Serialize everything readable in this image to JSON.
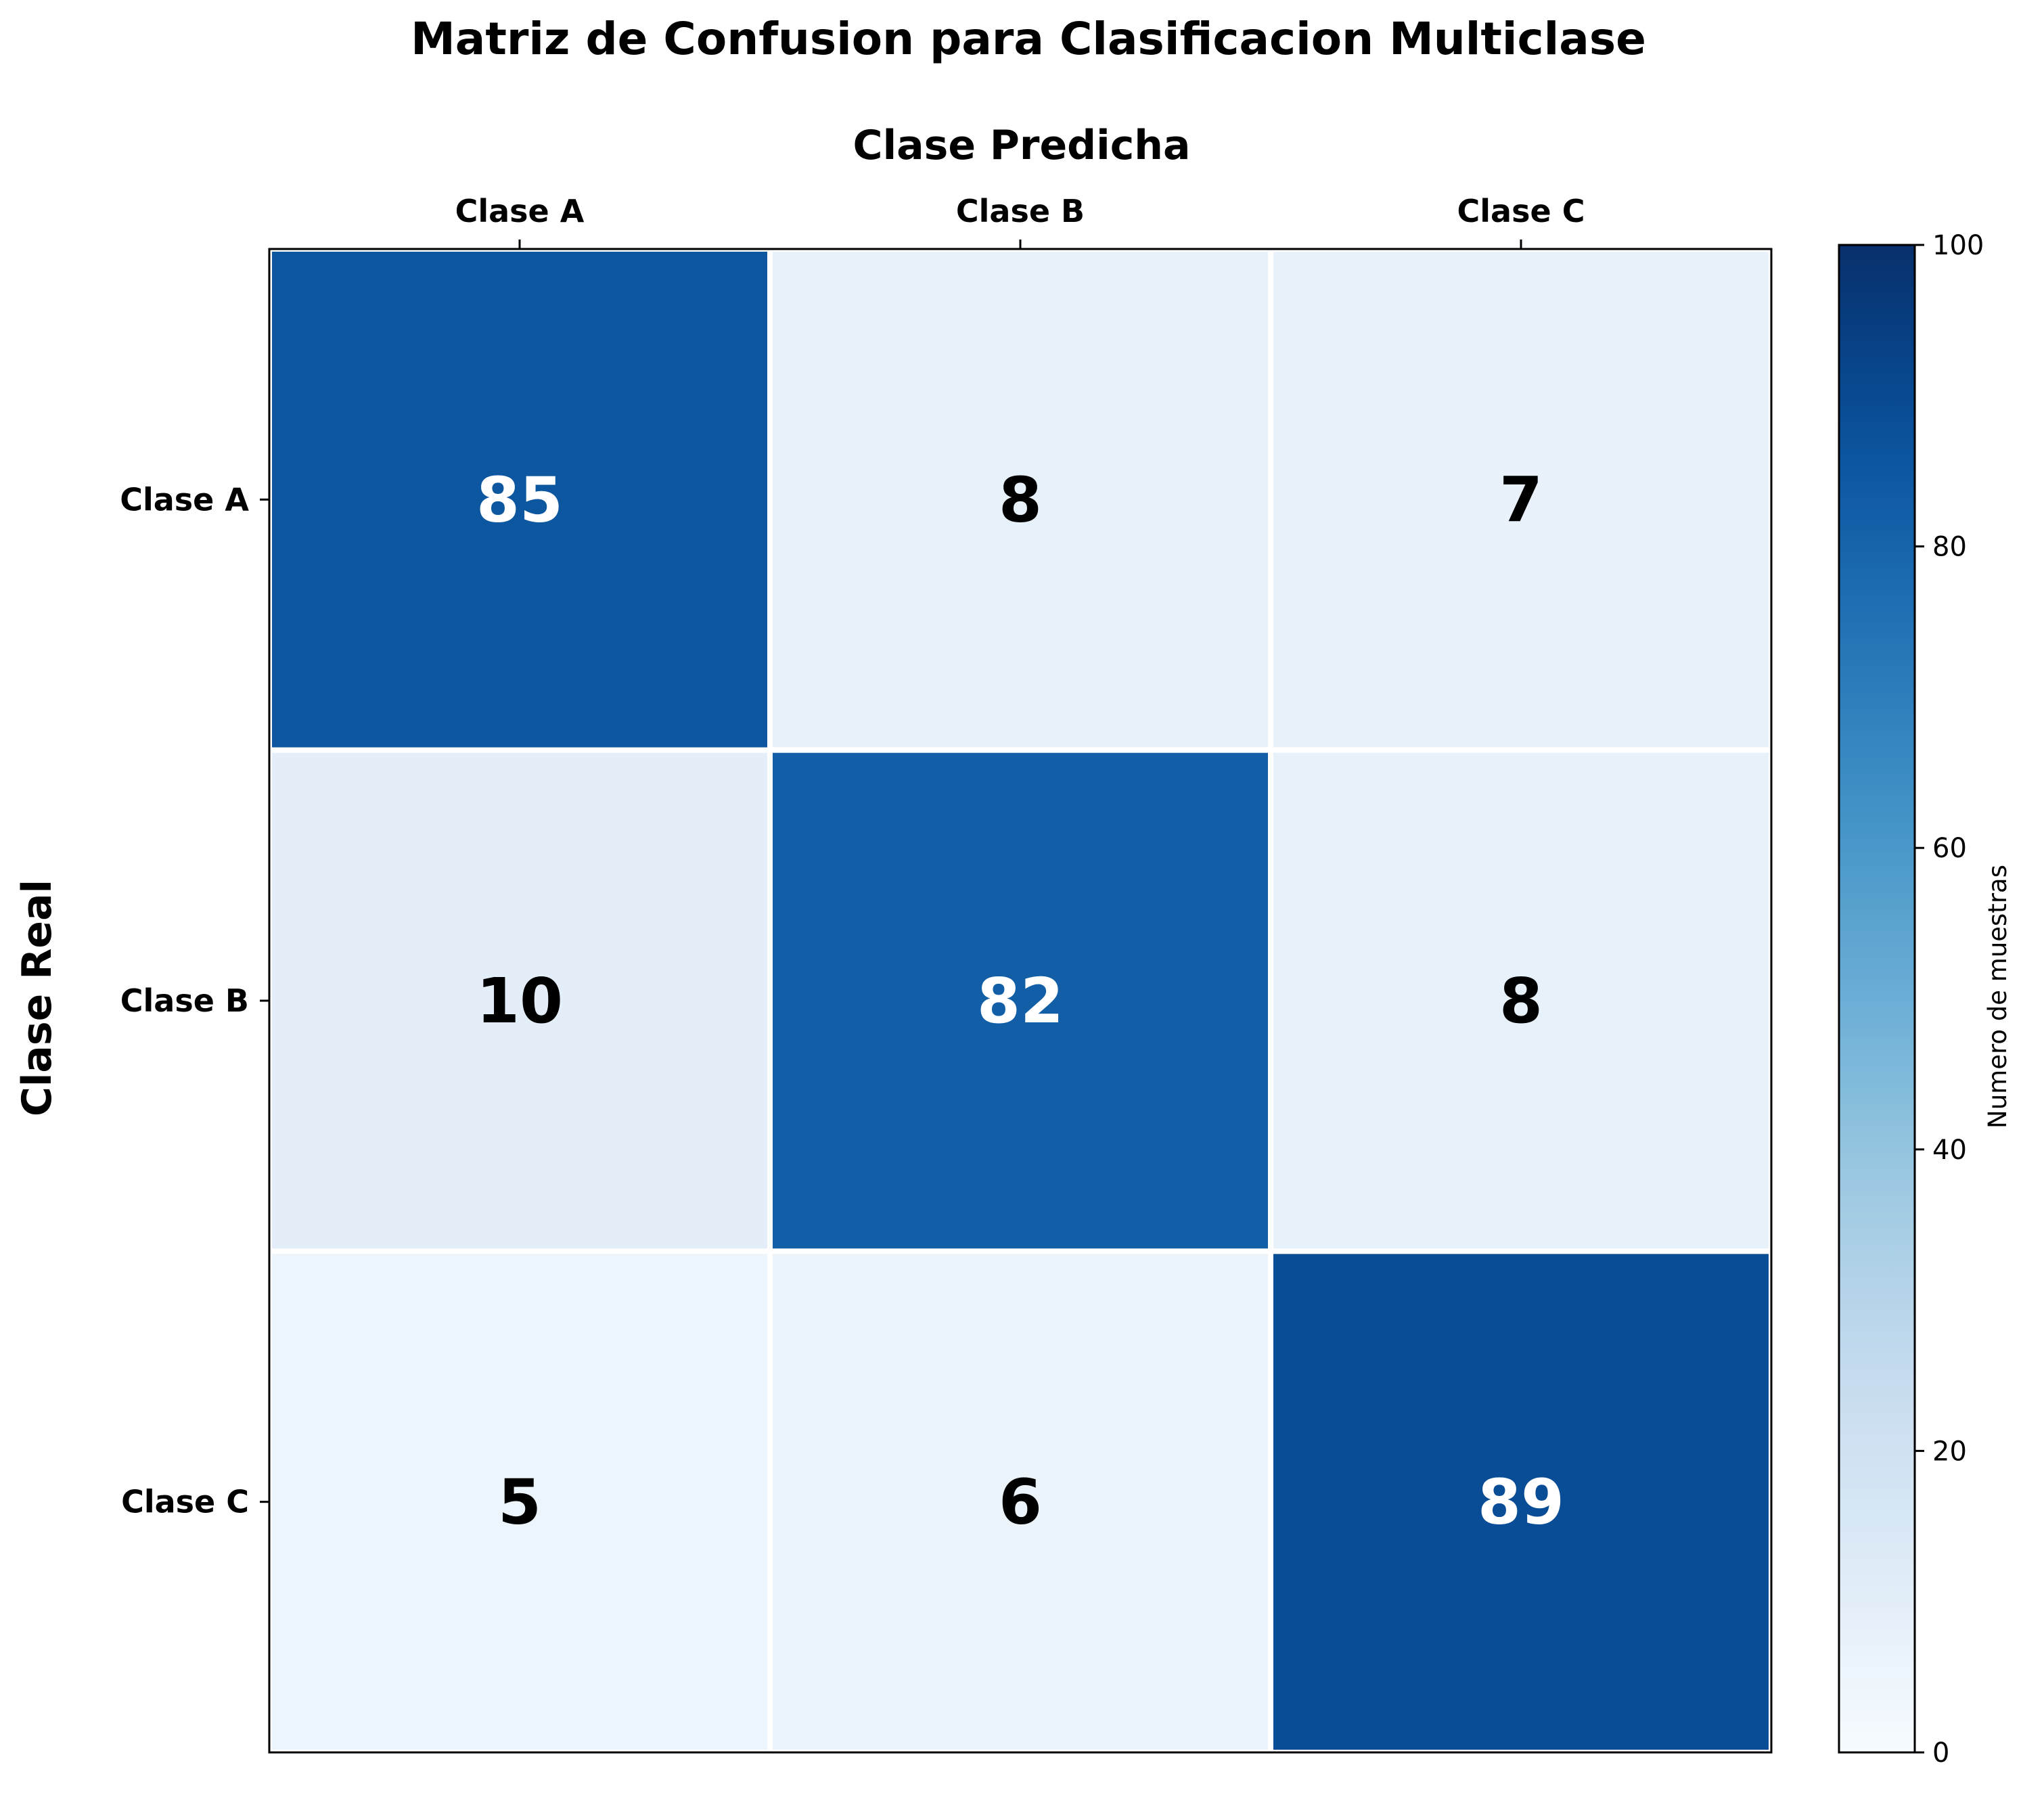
{
  "chart_data": {
    "type": "heatmap",
    "title": "Matriz de Confusion para Clasificacion Multiclase",
    "xlabel": "Clase Predicha",
    "ylabel": "Clase Real",
    "x_categories": [
      "Clase A",
      "Clase B",
      "Clase C"
    ],
    "y_categories": [
      "Clase A",
      "Clase B",
      "Clase C"
    ],
    "values": [
      [
        85,
        8,
        7
      ],
      [
        10,
        82,
        8
      ],
      [
        5,
        6,
        89
      ]
    ],
    "colormap": "Blues",
    "vmin": 0,
    "vmax": 100,
    "colorbar": {
      "label": "Numero de muestras",
      "ticks": [
        0,
        20,
        40,
        60,
        80,
        100
      ]
    },
    "x_axis_position": "top",
    "grid": false
  },
  "colors": {
    "cell_border": "#ffffff",
    "frame": "#000000",
    "dark_text": "#000000",
    "light_text": "#ffffff"
  }
}
